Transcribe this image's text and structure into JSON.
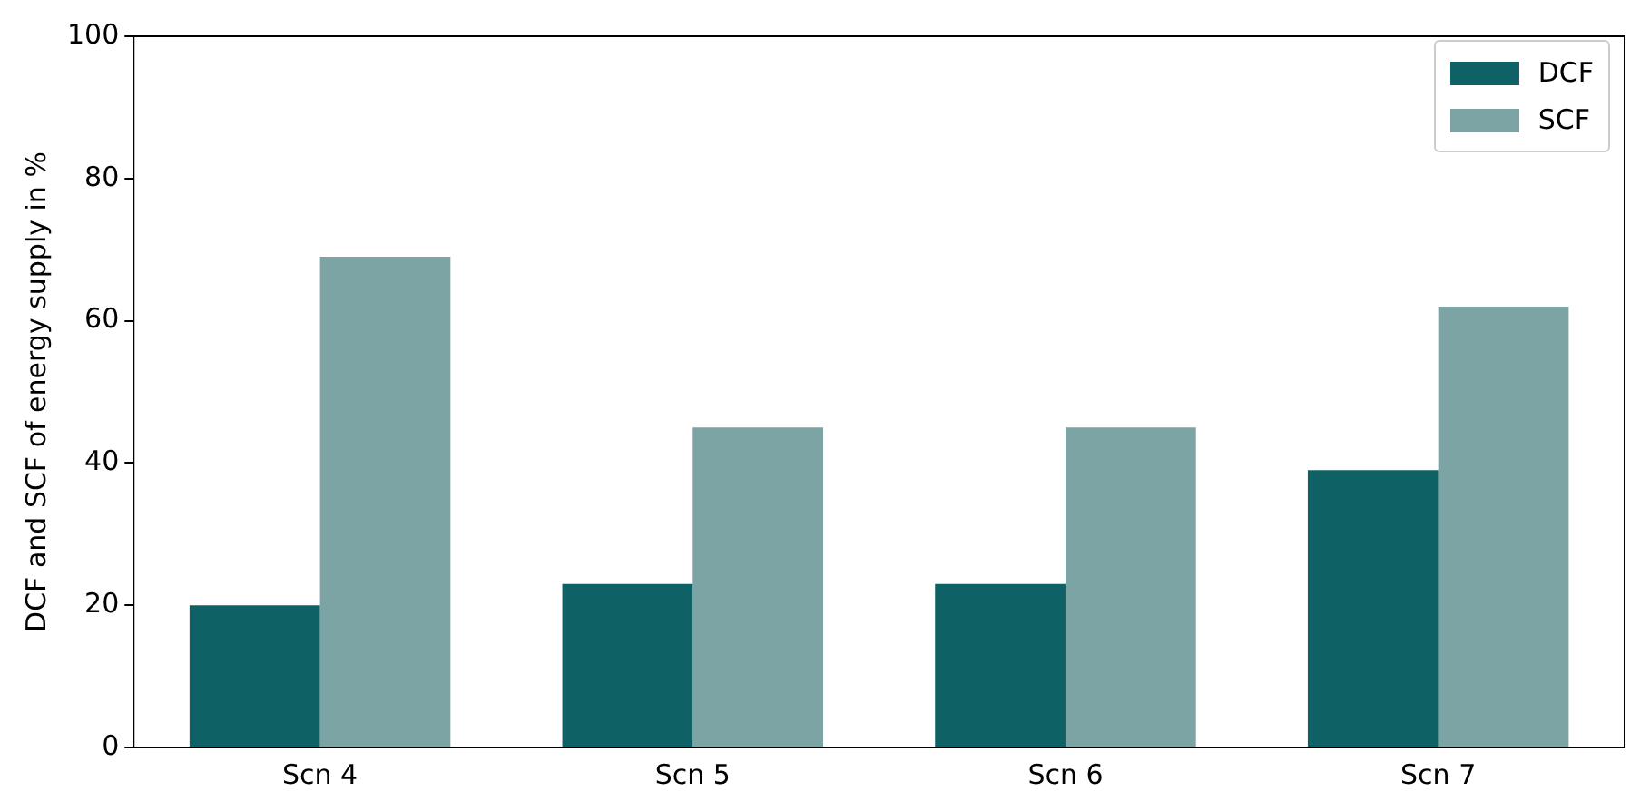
{
  "chart_data": {
    "type": "bar",
    "ylabel": "DCF and SCF of energy supply in %",
    "categories": [
      "Scn 4",
      "Scn 5",
      "Scn 6",
      "Scn 7"
    ],
    "series": [
      {
        "name": "DCF",
        "color": "#0e6266",
        "values": [
          20,
          23,
          23,
          39
        ]
      },
      {
        "name": "SCF",
        "color": "#7ca4a5",
        "values": [
          69,
          45,
          45,
          62
        ]
      }
    ],
    "ylim": [
      0,
      100
    ],
    "yticks": [
      0,
      20,
      40,
      60,
      80,
      100
    ],
    "grid": false,
    "legend": "top right"
  }
}
